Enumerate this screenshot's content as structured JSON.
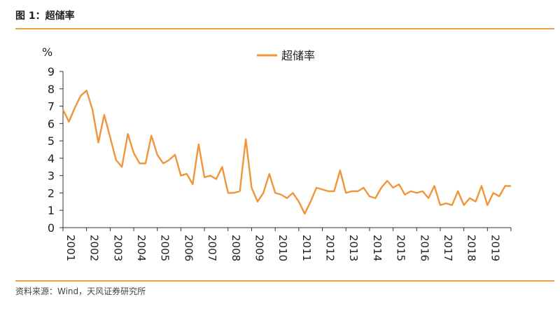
{
  "figure": {
    "title": "图 1：超储率",
    "source": "资料来源：Wind，天风证券研究所"
  },
  "colors": {
    "line": "#f0953a",
    "rule": "#f0a24a",
    "axis": "#333333"
  },
  "chart_data": {
    "type": "line",
    "ylabel": "%",
    "ylim": [
      0,
      9
    ],
    "yticks": [
      "0",
      "1",
      "2",
      "3",
      "4",
      "5",
      "6",
      "7",
      "8",
      "9"
    ],
    "xlim": [
      2001,
      2020
    ],
    "xticks": [
      "2001",
      "2002",
      "2003",
      "2004",
      "2005",
      "2006",
      "2007",
      "2008",
      "2009",
      "2010",
      "2011",
      "2012",
      "2013",
      "2014",
      "2015",
      "2016",
      "2017",
      "2018",
      "2019"
    ],
    "legend_position": "top-center",
    "series": [
      {
        "name": "超储率",
        "x": [
          2001.0,
          2001.25,
          2001.5,
          2001.75,
          2002.0,
          2002.25,
          2002.5,
          2002.75,
          2003.0,
          2003.25,
          2003.5,
          2003.75,
          2004.0,
          2004.25,
          2004.5,
          2004.75,
          2005.0,
          2005.25,
          2005.5,
          2005.75,
          2006.0,
          2006.25,
          2006.5,
          2006.75,
          2007.0,
          2007.25,
          2007.5,
          2007.75,
          2008.0,
          2008.25,
          2008.5,
          2008.75,
          2009.0,
          2009.25,
          2009.5,
          2009.75,
          2010.0,
          2010.25,
          2010.5,
          2010.75,
          2011.0,
          2011.25,
          2011.5,
          2011.75,
          2012.0,
          2012.25,
          2012.5,
          2012.75,
          2013.0,
          2013.25,
          2013.5,
          2013.75,
          2014.0,
          2014.25,
          2014.5,
          2014.75,
          2015.0,
          2015.25,
          2015.5,
          2015.75,
          2016.0,
          2016.25,
          2016.5,
          2016.75,
          2017.0,
          2017.25,
          2017.5,
          2017.75,
          2018.0,
          2018.25,
          2018.5,
          2018.75,
          2019.0,
          2019.25,
          2019.5,
          2019.75,
          2020.0
        ],
        "values": [
          6.8,
          6.1,
          6.9,
          7.6,
          7.9,
          6.8,
          4.9,
          6.5,
          5.2,
          3.9,
          3.5,
          5.4,
          4.3,
          3.7,
          3.7,
          5.3,
          4.2,
          3.7,
          3.9,
          4.2,
          3.0,
          3.1,
          2.5,
          4.8,
          2.9,
          3.0,
          2.8,
          3.5,
          2.0,
          2.0,
          2.1,
          5.1,
          2.3,
          1.5,
          2.0,
          3.1,
          2.0,
          1.9,
          1.7,
          2.0,
          1.5,
          0.8,
          1.5,
          2.3,
          2.2,
          2.1,
          2.1,
          3.3,
          2.0,
          2.1,
          2.1,
          2.3,
          1.8,
          1.7,
          2.3,
          2.7,
          2.3,
          2.5,
          1.9,
          2.1,
          2.0,
          2.1,
          1.7,
          2.4,
          1.3,
          1.4,
          1.3,
          2.1,
          1.3,
          1.7,
          1.5,
          2.4,
          1.3,
          2.0,
          1.8,
          2.4,
          2.4
        ]
      }
    ]
  }
}
